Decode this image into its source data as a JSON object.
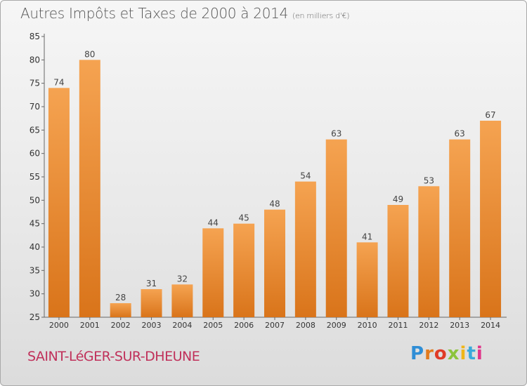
{
  "header": {
    "title": "Autres Impôts et Taxes de 2000 à 2014",
    "subtitle": "(en milliers d'€)"
  },
  "footer": {
    "location": "SAINT-LéGER-SUR-DHEUNE",
    "logo_letters": [
      "P",
      "r",
      "o",
      "x",
      "i",
      "t",
      "i"
    ],
    "logo_colors": [
      "#2f8ed6",
      "#e27a1d",
      "#e03b26",
      "#8cc43c",
      "#f0b617",
      "#39a9db",
      "#e0358a"
    ]
  },
  "chart_data": {
    "type": "bar",
    "title": "Autres Impôts et Taxes de 2000 à 2014",
    "subtitle": "(en milliers d'€)",
    "categories": [
      "2000",
      "2001",
      "2002",
      "2003",
      "2004",
      "2005",
      "2006",
      "2007",
      "2008",
      "2009",
      "2010",
      "2011",
      "2012",
      "2013",
      "2014"
    ],
    "values": [
      74,
      80,
      28,
      31,
      32,
      44,
      45,
      48,
      54,
      63,
      41,
      49,
      53,
      63,
      67
    ],
    "ylim": [
      25,
      85
    ],
    "yticks": [
      25,
      30,
      35,
      40,
      45,
      50,
      55,
      60,
      65,
      70,
      75,
      80,
      85
    ],
    "grid": false,
    "bar_color_top": "#f5a351",
    "bar_color_bottom": "#d9741a",
    "data_labels": true
  }
}
